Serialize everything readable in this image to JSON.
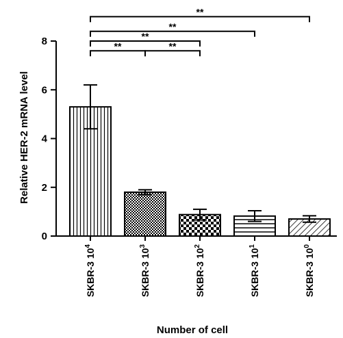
{
  "chart_data": {
    "type": "bar",
    "categories": [
      {
        "base": "SKBR-3 10",
        "exp": "4"
      },
      {
        "base": "SKBR-3 10",
        "exp": "3"
      },
      {
        "base": "SKBR-3 10",
        "exp": "2"
      },
      {
        "base": "SKBR-3 10",
        "exp": "1"
      },
      {
        "base": "SKBR-3 10",
        "exp": "0"
      }
    ],
    "values": [
      5.3,
      1.8,
      0.88,
      0.82,
      0.7
    ],
    "errors": [
      0.9,
      0.1,
      0.22,
      0.22,
      0.13
    ],
    "patterns": [
      "vertical-lines",
      "dots",
      "checker",
      "horizontal-lines",
      "diagonal-lines"
    ],
    "xlabel": "Number of cell",
    "ylabel": "Relative HER-2 mRNA level",
    "ylim": [
      0,
      8
    ],
    "yticks": [
      0,
      2,
      4,
      6,
      8
    ],
    "significance": [
      {
        "from": 0,
        "to": 1,
        "level": 7.6,
        "label": "**"
      },
      {
        "from": 1,
        "to": 2,
        "level": 7.6,
        "label": "**"
      },
      {
        "from": 0,
        "to": 2,
        "level": 8.0,
        "label": "**"
      },
      {
        "from": 0,
        "to": 3,
        "level": 8.4,
        "label": "**"
      },
      {
        "from": 0,
        "to": 4,
        "level": 9.0,
        "label": "**"
      }
    ],
    "grid": false,
    "legend": "none"
  }
}
